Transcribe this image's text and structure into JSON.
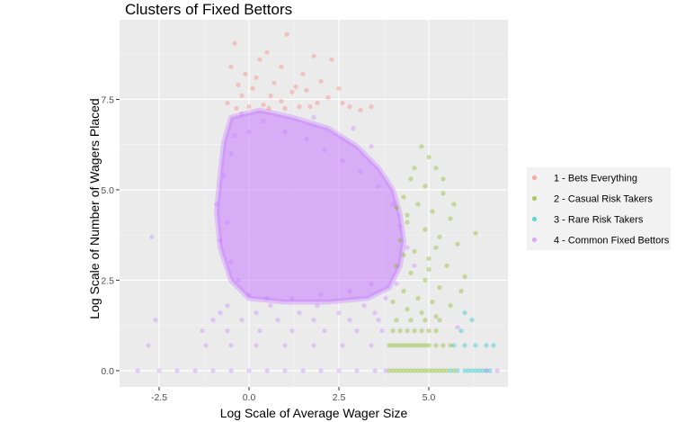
{
  "chart_data": {
    "type": "scatter",
    "title": "Clusters of Fixed Bettors",
    "xlabel": "Log Scale of Average Wager Size",
    "ylabel": "Log Scale of Number of Wagers Placed",
    "xlim": [
      -3.6,
      7.2
    ],
    "ylim": [
      -0.45,
      9.7
    ],
    "x_ticks": [
      -2.5,
      0.0,
      2.5,
      5.0
    ],
    "x_tick_labels": [
      "-2.5",
      "0.0",
      "2.5",
      "5.0"
    ],
    "y_ticks": [
      0.0,
      2.5,
      5.0,
      7.5
    ],
    "y_tick_labels": [
      "0.0",
      "2.5",
      "5.0",
      "7.5"
    ],
    "grid": true,
    "legend_position": "right",
    "point_alpha": 0.35,
    "series": [
      {
        "name": "1 - Bets Everything",
        "color": "#f8766d",
        "points": [
          [
            -0.4,
            9.05
          ],
          [
            1.05,
            9.3
          ],
          [
            0.5,
            8.8
          ],
          [
            -0.1,
            8.2
          ],
          [
            0.3,
            8.6
          ],
          [
            1.8,
            8.7
          ],
          [
            2.3,
            8.6
          ],
          [
            0.9,
            8.4
          ],
          [
            1.5,
            8.2
          ],
          [
            -0.3,
            7.9
          ],
          [
            0.1,
            7.8
          ],
          [
            0.6,
            7.6
          ],
          [
            1.2,
            7.7
          ],
          [
            1.9,
            7.4
          ],
          [
            2.5,
            7.8
          ],
          [
            -0.6,
            7.4
          ],
          [
            0.0,
            7.3
          ],
          [
            0.4,
            7.35
          ],
          [
            0.9,
            7.45
          ],
          [
            1.4,
            7.3
          ],
          [
            2.2,
            7.55
          ],
          [
            2.8,
            7.3
          ],
          [
            3.1,
            7.2
          ],
          [
            -0.2,
            7.6
          ],
          [
            0.7,
            7.95
          ],
          [
            1.6,
            7.75
          ],
          [
            -0.5,
            8.4
          ],
          [
            2.0,
            8.0
          ],
          [
            3.4,
            7.3
          ],
          [
            0.2,
            8.1
          ],
          [
            1.0,
            7.25
          ],
          [
            1.7,
            7.3
          ],
          [
            -0.35,
            7.25
          ],
          [
            2.6,
            7.4
          ],
          [
            0.55,
            7.25
          ],
          [
            1.3,
            7.85
          ]
        ]
      },
      {
        "name": "2 - Casual Risk Takers",
        "color": "#7cae00",
        "points": [
          [
            4.8,
            6.2
          ],
          [
            5.0,
            5.9
          ],
          [
            5.2,
            5.6
          ],
          [
            4.5,
            5.3
          ],
          [
            4.9,
            5.1
          ],
          [
            5.4,
            4.9
          ],
          [
            4.3,
            4.8
          ],
          [
            4.7,
            4.6
          ],
          [
            5.1,
            4.4
          ],
          [
            5.6,
            4.2
          ],
          [
            4.4,
            4.1
          ],
          [
            4.9,
            3.9
          ],
          [
            5.3,
            3.7
          ],
          [
            5.8,
            3.5
          ],
          [
            4.2,
            3.6
          ],
          [
            4.6,
            3.3
          ],
          [
            5.0,
            3.1
          ],
          [
            5.5,
            2.9
          ],
          [
            4.1,
            2.9
          ],
          [
            4.5,
            2.7
          ],
          [
            4.9,
            2.5
          ],
          [
            5.3,
            2.3
          ],
          [
            5.9,
            2.2
          ],
          [
            4.3,
            2.2
          ],
          [
            4.7,
            2.0
          ],
          [
            5.1,
            1.9
          ],
          [
            5.6,
            1.8
          ],
          [
            4.0,
            1.9
          ],
          [
            4.4,
            1.7
          ],
          [
            4.8,
            1.6
          ],
          [
            5.2,
            1.5
          ],
          [
            4.6,
            5.6
          ],
          [
            5.4,
            5.3
          ],
          [
            6.3,
            3.8
          ],
          [
            5.7,
            4.6
          ],
          [
            4.3,
            3.2
          ],
          [
            5.0,
            2.8
          ],
          [
            4.4,
            4.3
          ],
          [
            5.2,
            3.4
          ],
          [
            6.0,
            2.6
          ],
          [
            4.1,
            4.5
          ],
          [
            3.9,
            0.7
          ],
          [
            4.0,
            0.7
          ],
          [
            4.1,
            0.7
          ],
          [
            4.2,
            0.7
          ],
          [
            4.3,
            0.7
          ],
          [
            4.4,
            0.7
          ],
          [
            4.5,
            0.7
          ],
          [
            4.6,
            0.7
          ],
          [
            4.7,
            0.7
          ],
          [
            4.8,
            0.7
          ],
          [
            4.9,
            0.7
          ],
          [
            5.0,
            0.7
          ],
          [
            5.2,
            0.7
          ],
          [
            5.4,
            0.7
          ],
          [
            5.6,
            0.7
          ],
          [
            4.0,
            1.1
          ],
          [
            4.2,
            1.1
          ],
          [
            4.4,
            1.1
          ],
          [
            4.6,
            1.1
          ],
          [
            4.8,
            1.1
          ],
          [
            5.0,
            1.1
          ],
          [
            5.2,
            1.1
          ],
          [
            4.1,
            1.4
          ],
          [
            4.5,
            1.4
          ],
          [
            4.9,
            1.4
          ],
          [
            5.3,
            1.4
          ],
          [
            3.9,
            0.0
          ],
          [
            4.0,
            0.0
          ],
          [
            4.1,
            0.0
          ],
          [
            4.2,
            0.0
          ],
          [
            4.3,
            0.0
          ],
          [
            4.4,
            0.0
          ],
          [
            4.5,
            0.0
          ],
          [
            4.6,
            0.0
          ],
          [
            4.7,
            0.0
          ],
          [
            4.8,
            0.0
          ],
          [
            4.9,
            0.0
          ],
          [
            5.0,
            0.0
          ],
          [
            5.1,
            0.0
          ],
          [
            5.2,
            0.0
          ],
          [
            5.3,
            0.0
          ],
          [
            5.4,
            0.0
          ],
          [
            5.5,
            0.0
          ],
          [
            5.7,
            0.0
          ]
        ]
      },
      {
        "name": "3 - Rare Risk Takers",
        "color": "#00bfc4",
        "points": [
          [
            5.6,
            0.0
          ],
          [
            5.8,
            0.0
          ],
          [
            6.0,
            0.0
          ],
          [
            6.1,
            0.0
          ],
          [
            6.2,
            0.0
          ],
          [
            6.3,
            0.0
          ],
          [
            6.4,
            0.0
          ],
          [
            6.5,
            0.0
          ],
          [
            6.6,
            0.0
          ],
          [
            6.7,
            0.0
          ],
          [
            5.7,
            0.7
          ],
          [
            6.0,
            0.7
          ],
          [
            6.3,
            0.7
          ],
          [
            6.6,
            0.7
          ],
          [
            6.8,
            0.7
          ],
          [
            5.9,
            1.1
          ],
          [
            6.2,
            1.4
          ],
          [
            6.0,
            1.6
          ]
        ]
      },
      {
        "name": "4 - Common Fixed Bettors",
        "color": "#c77cff",
        "points": [
          [
            -2.7,
            3.7
          ],
          [
            -2.8,
            0.7
          ],
          [
            -2.6,
            1.4
          ],
          [
            -0.4,
            6.5
          ],
          [
            -0.7,
            5.4
          ],
          [
            -0.9,
            4.6
          ],
          [
            -0.5,
            6.0
          ],
          [
            0.0,
            6.6
          ],
          [
            0.4,
            6.9
          ],
          [
            1.0,
            6.6
          ],
          [
            1.6,
            6.4
          ],
          [
            2.1,
            6.1
          ],
          [
            2.6,
            5.8
          ],
          [
            3.1,
            5.5
          ],
          [
            3.6,
            5.1
          ],
          [
            4.0,
            4.6
          ],
          [
            4.2,
            4.0
          ],
          [
            4.4,
            3.4
          ],
          [
            4.6,
            2.9
          ],
          [
            4.1,
            2.4
          ],
          [
            3.8,
            2.0
          ],
          [
            3.4,
            6.2
          ],
          [
            2.9,
            6.7
          ],
          [
            1.8,
            7.0
          ],
          [
            -0.2,
            7.1
          ],
          [
            -0.6,
            4.1
          ],
          [
            -0.8,
            3.6
          ],
          [
            -0.5,
            3.0
          ],
          [
            -0.3,
            2.5
          ],
          [
            0.0,
            2.1
          ],
          [
            0.5,
            2.0
          ],
          [
            1.2,
            2.0
          ],
          [
            2.0,
            2.1
          ],
          [
            2.8,
            2.2
          ],
          [
            3.4,
            2.4
          ],
          [
            -3.1,
            0.0
          ],
          [
            -2.5,
            0.0
          ],
          [
            -2.0,
            0.0
          ],
          [
            -1.5,
            0.0
          ],
          [
            -1.0,
            0.0
          ],
          [
            -0.5,
            0.0
          ],
          [
            0.0,
            0.0
          ],
          [
            0.5,
            0.0
          ],
          [
            1.0,
            0.0
          ],
          [
            1.5,
            0.0
          ],
          [
            2.0,
            0.0
          ],
          [
            2.5,
            0.0
          ],
          [
            3.0,
            0.0
          ],
          [
            3.5,
            0.0
          ],
          [
            3.8,
            0.0
          ],
          [
            -1.2,
            0.7
          ],
          [
            -0.5,
            0.7
          ],
          [
            0.2,
            0.7
          ],
          [
            1.0,
            0.7
          ],
          [
            1.8,
            0.7
          ],
          [
            2.6,
            0.7
          ],
          [
            3.4,
            0.7
          ],
          [
            -1.3,
            1.1
          ],
          [
            -0.6,
            1.1
          ],
          [
            0.3,
            1.1
          ],
          [
            1.2,
            1.1
          ],
          [
            2.1,
            1.1
          ],
          [
            3.0,
            1.1
          ],
          [
            3.7,
            1.1
          ],
          [
            -1.0,
            1.4
          ],
          [
            -0.2,
            1.4
          ],
          [
            0.8,
            1.4
          ],
          [
            1.8,
            1.4
          ],
          [
            2.8,
            1.4
          ],
          [
            3.6,
            1.4
          ],
          [
            -0.8,
            1.6
          ],
          [
            0.2,
            1.6
          ],
          [
            1.4,
            1.6
          ],
          [
            2.5,
            1.6
          ],
          [
            3.5,
            1.6
          ],
          [
            -0.6,
            1.8
          ],
          [
            0.6,
            1.8
          ],
          [
            1.9,
            1.8
          ],
          [
            3.2,
            1.8
          ],
          [
            6.6,
            0.0
          ],
          [
            5.8,
            1.2
          ],
          [
            6.9,
            0.0
          ]
        ]
      }
    ]
  }
}
